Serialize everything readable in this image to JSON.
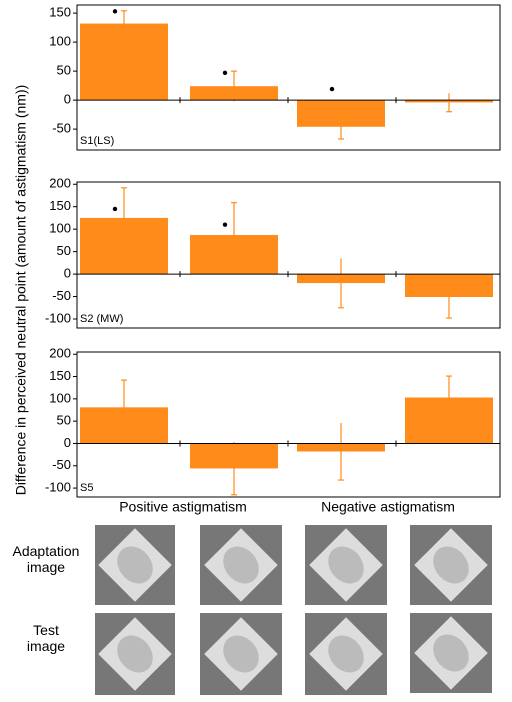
{
  "y_label": "Difference in perceived neutral point (amount of astigmatism (nm))",
  "group_labels": [
    "Positive astigmatism",
    "Negative astigmatism"
  ],
  "row_labels": [
    "Adaptation image",
    "Test image"
  ],
  "chart_data": [
    {
      "type": "bar",
      "panel_label": "S1(LS)",
      "color": "#ff8c1a",
      "values": [
        132,
        24,
        -46,
        -4
      ],
      "errors": [
        22,
        26,
        21,
        16
      ],
      "markers": [
        153,
        47,
        19,
        null
      ],
      "ylim": [
        -86,
        164
      ],
      "yticks": [
        -50,
        0,
        50,
        100,
        150
      ]
    },
    {
      "type": "bar",
      "panel_label": "S2 (MW)",
      "color": "#ff8c1a",
      "values": [
        125,
        87,
        -20,
        -51
      ],
      "errors": [
        67,
        72,
        55,
        47
      ],
      "markers": [
        145,
        110,
        null,
        null
      ],
      "ylim": [
        -120,
        205
      ],
      "yticks": [
        -100,
        -50,
        0,
        50,
        100,
        150,
        200
      ]
    },
    {
      "type": "bar",
      "panel_label": "S5",
      "color": "#ff8c1a",
      "values": [
        81,
        -56,
        -18,
        103
      ],
      "errors": [
        61,
        59,
        64,
        48
      ],
      "markers": [
        null,
        null,
        null,
        null
      ],
      "ylim": [
        -120,
        205
      ],
      "yticks": [
        -100,
        -50,
        0,
        50,
        100,
        150,
        200
      ]
    }
  ]
}
